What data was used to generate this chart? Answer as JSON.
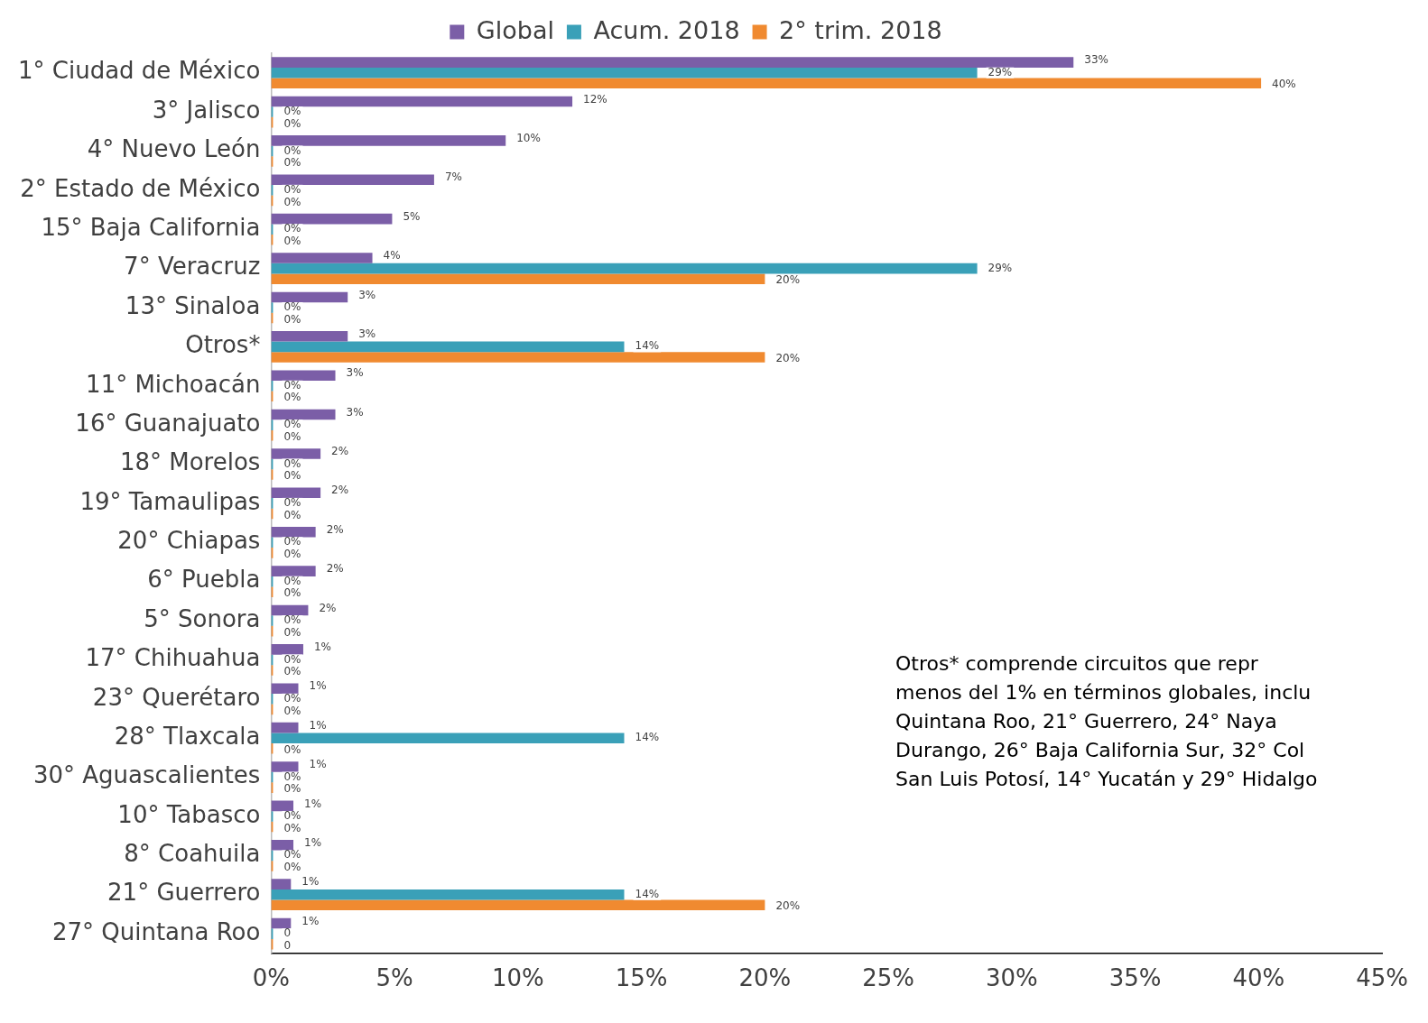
{
  "chart_data": {
    "type": "bar",
    "orientation": "horizontal",
    "legend": "top",
    "grid": false,
    "categories": [
      "1° Ciudad de México",
      "3° Jalisco",
      "4° Nuevo León",
      "2° Estado de México",
      "15° Baja California",
      "7° Veracruz",
      "13° Sinaloa",
      "Otros*",
      "11° Michoacán",
      "16° Guanajuato",
      "18° Morelos",
      "19° Tamaulipas",
      "20° Chiapas",
      "6° Puebla",
      "5° Sonora",
      "17° Chihuahua",
      "23° Querétaro",
      "28° Tlaxcala",
      "30° Aguascalientes",
      "10° Tabasco",
      "8° Coahuila",
      "21° Guerrero",
      "27° Quintana Roo"
    ],
    "series": [
      {
        "name": "Global",
        "color": "#7b5ea7",
        "values": [
          32.5,
          12.2,
          9.5,
          6.6,
          4.9,
          4.1,
          3.1,
          3.1,
          2.6,
          2.6,
          2.0,
          2.0,
          1.8,
          1.8,
          1.5,
          1.3,
          1.1,
          1.1,
          1.1,
          0.9,
          0.9,
          0.8,
          0.8
        ],
        "value_labels": [
          "33%",
          "12%",
          "10%",
          "7%",
          "5%",
          "4%",
          "3%",
          "3%",
          "3%",
          "3%",
          "2%",
          "2%",
          "2%",
          "2%",
          "2%",
          "1%",
          "1%",
          "1%",
          "1%",
          "1%",
          "1%",
          "1%",
          "1%"
        ]
      },
      {
        "name": "Acum. 2018",
        "color": "#3aa0b8",
        "values": [
          28.6,
          0,
          0,
          0,
          0,
          28.6,
          0,
          14.3,
          0,
          0,
          0,
          0,
          0,
          0,
          0,
          0,
          0,
          14.3,
          0,
          0,
          0,
          14.3,
          0
        ],
        "value_labels": [
          "29%",
          "0%",
          "0%",
          "0%",
          "0%",
          "29%",
          "0%",
          "14%",
          "0%",
          "0%",
          "0%",
          "0%",
          "0%",
          "0%",
          "0%",
          "0%",
          "0%",
          "14%",
          "0%",
          "0%",
          "0%",
          "14%",
          "0"
        ]
      },
      {
        "name": "2° trim. 2018",
        "color": "#f08a30",
        "values": [
          40.1,
          0,
          0,
          0,
          0,
          20.0,
          0,
          20.0,
          0,
          0,
          0,
          0,
          0,
          0,
          0,
          0,
          0,
          0,
          0,
          0,
          0,
          20.0,
          0
        ],
        "value_labels": [
          "40%",
          "0%",
          "0%",
          "0%",
          "0%",
          "20%",
          "0%",
          "20%",
          "0%",
          "0%",
          "0%",
          "0%",
          "0%",
          "0%",
          "0%",
          "0%",
          "0%",
          "0%",
          "0%",
          "0%",
          "0%",
          "20%",
          "0"
        ]
      }
    ],
    "xlim": [
      0,
      45
    ],
    "xticks": [
      {
        "value": 0,
        "label": "0%"
      },
      {
        "value": 5,
        "label": "5%"
      },
      {
        "value": 10,
        "label": "10%"
      },
      {
        "value": 15,
        "label": "15%"
      },
      {
        "value": 20,
        "label": "20%"
      },
      {
        "value": 25,
        "label": "25%"
      },
      {
        "value": 30,
        "label": "30%"
      },
      {
        "value": 35,
        "label": "35%"
      },
      {
        "value": 40,
        "label": "40%"
      },
      {
        "value": 45,
        "label": "45%"
      }
    ],
    "annotations": [
      "Otros* comprende circuitos que repr\nmenos del 1% en términos globales, inclu\nQuintana Roo, 21° Guerrero, 24° Naya\nDurango, 26° Baja California Sur, 32° Col\nSan Luis Potosí, 14° Yucatán y 29° Hidalgo"
    ]
  }
}
